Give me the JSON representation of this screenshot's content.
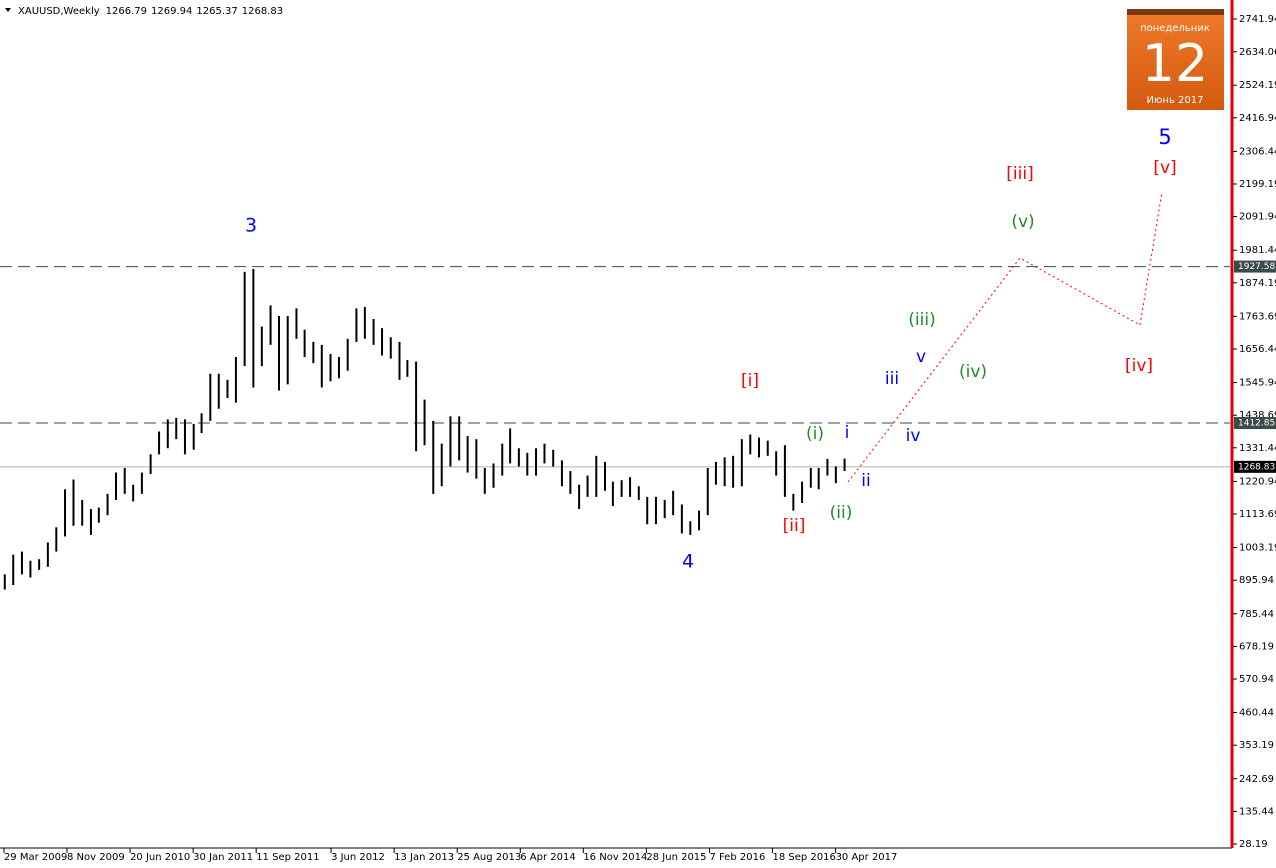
{
  "chart_data": {
    "type": "ohlc",
    "header": {
      "symbol": "XAUUSD,Weekly",
      "ohlc": [
        1266.79,
        1269.94,
        1265.37,
        1268.83
      ]
    },
    "x": [
      "2009-04-01",
      "2009-05-01",
      "2009-06-01",
      "2009-07-01",
      "2009-08-01",
      "2009-09-01",
      "2009-10-01",
      "2009-11-01",
      "2009-12-01",
      "2010-01-01",
      "2010-02-01",
      "2010-03-01",
      "2010-04-01",
      "2010-05-01",
      "2010-06-01",
      "2010-07-01",
      "2010-08-01",
      "2010-09-01",
      "2010-10-01",
      "2010-11-01",
      "2010-12-01",
      "2011-01-01",
      "2011-02-01",
      "2011-03-01",
      "2011-04-01",
      "2011-05-01",
      "2011-06-01",
      "2011-07-01",
      "2011-08-01",
      "2011-09-01",
      "2011-10-01",
      "2011-11-01",
      "2011-12-01",
      "2012-01-01",
      "2012-02-01",
      "2012-03-01",
      "2012-04-01",
      "2012-05-01",
      "2012-06-01",
      "2012-07-01",
      "2012-08-01",
      "2012-09-01",
      "2012-10-01",
      "2012-11-01",
      "2012-12-01",
      "2013-01-01",
      "2013-02-01",
      "2013-03-01",
      "2013-04-01",
      "2013-05-01",
      "2013-06-01",
      "2013-07-01",
      "2013-08-01",
      "2013-09-01",
      "2013-10-01",
      "2013-11-01",
      "2013-12-01",
      "2014-01-01",
      "2014-02-01",
      "2014-03-01",
      "2014-04-01",
      "2014-05-01",
      "2014-06-01",
      "2014-07-01",
      "2014-08-01",
      "2014-09-01",
      "2014-10-01",
      "2014-11-01",
      "2014-12-01",
      "2015-01-01",
      "2015-02-01",
      "2015-03-01",
      "2015-04-01",
      "2015-05-01",
      "2015-06-01",
      "2015-07-01",
      "2015-08-01",
      "2015-09-01",
      "2015-10-01",
      "2015-11-01",
      "2015-12-01",
      "2016-01-01",
      "2016-02-01",
      "2016-03-01",
      "2016-04-01",
      "2016-05-01",
      "2016-06-01",
      "2016-07-01",
      "2016-08-01",
      "2016-09-01",
      "2016-10-01",
      "2016-11-01",
      "2016-12-01",
      "2017-01-01",
      "2017-02-01",
      "2017-03-01",
      "2017-04-01",
      "2017-05-01",
      "2017-06-01"
    ],
    "high": [
      915,
      980,
      990,
      960,
      965,
      1020,
      1070,
      1195,
      1227,
      1160,
      1130,
      1135,
      1180,
      1250,
      1265,
      1210,
      1250,
      1310,
      1385,
      1425,
      1430,
      1425,
      1410,
      1445,
      1575,
      1575,
      1555,
      1630,
      1910,
      1920,
      1730,
      1800,
      1765,
      1765,
      1790,
      1720,
      1680,
      1670,
      1640,
      1630,
      1690,
      1790,
      1795,
      1755,
      1725,
      1695,
      1680,
      1620,
      1615,
      1490,
      1420,
      1345,
      1435,
      1435,
      1370,
      1360,
      1265,
      1280,
      1345,
      1395,
      1330,
      1315,
      1330,
      1345,
      1325,
      1290,
      1255,
      1210,
      1240,
      1305,
      1285,
      1220,
      1225,
      1235,
      1205,
      1170,
      1170,
      1160,
      1190,
      1145,
      1090,
      1125,
      1265,
      1285,
      1300,
      1305,
      1360,
      1375,
      1365,
      1355,
      1320,
      1340,
      1180,
      1220,
      1265,
      1265,
      1295,
      1270,
      1296
    ],
    "low": [
      865,
      880,
      915,
      905,
      930,
      940,
      990,
      1040,
      1075,
      1075,
      1045,
      1085,
      1110,
      1160,
      1180,
      1155,
      1180,
      1245,
      1310,
      1330,
      1360,
      1310,
      1325,
      1380,
      1420,
      1460,
      1495,
      1480,
      1600,
      1530,
      1600,
      1670,
      1520,
      1540,
      1690,
      1630,
      1610,
      1530,
      1550,
      1560,
      1585,
      1680,
      1690,
      1670,
      1635,
      1625,
      1555,
      1565,
      1320,
      1340,
      1180,
      1205,
      1270,
      1290,
      1250,
      1230,
      1180,
      1200,
      1240,
      1280,
      1270,
      1240,
      1240,
      1280,
      1270,
      1205,
      1180,
      1130,
      1170,
      1170,
      1190,
      1140,
      1170,
      1170,
      1160,
      1080,
      1080,
      1100,
      1110,
      1050,
      1045,
      1060,
      1110,
      1210,
      1205,
      1200,
      1205,
      1310,
      1300,
      1305,
      1240,
      1170,
      1125,
      1150,
      1200,
      1195,
      1240,
      1215,
      1255
    ],
    "xlim": [
      "2009-03-15",
      "2021-03-01"
    ],
    "xticks": [
      {
        "value": "2009-03-29",
        "label": "29 Mar 2009"
      },
      {
        "value": "2009-11-08",
        "label": "8 Nov 2009"
      },
      {
        "value": "2010-06-20",
        "label": "20 Jun 2010"
      },
      {
        "value": "2011-01-30",
        "label": "30 Jan 2011"
      },
      {
        "value": "2011-09-11",
        "label": "11 Sep 2011"
      },
      {
        "value": "2012-06-03",
        "label": "3 Jun 2012"
      },
      {
        "value": "2013-01-13",
        "label": "13 Jan 2013"
      },
      {
        "value": "2013-08-25",
        "label": "25 Aug 2013"
      },
      {
        "value": "2014-04-06",
        "label": "6 Apr 2014"
      },
      {
        "value": "2014-11-16",
        "label": "16 Nov 2014"
      },
      {
        "value": "2015-06-28",
        "label": "28 Jun 2015"
      },
      {
        "value": "2016-02-07",
        "label": "7 Feb 2016"
      },
      {
        "value": "2016-09-18",
        "label": "18 Sep 2016"
      },
      {
        "value": "2017-04-30",
        "label": "30 Apr 2017"
      }
    ],
    "ylim": [
      15.03,
      2804.44
    ],
    "yticks": [
      2741.94,
      2634.06,
      2524.19,
      2416.94,
      2306.44,
      2199.19,
      2091.94,
      1981.44,
      1874.19,
      1763.69,
      1656.44,
      1545.94,
      1438.69,
      1331.44,
      1220.94,
      1113.69,
      1003.19,
      895.94,
      785.44,
      678.19,
      570.94,
      460.44,
      353.19,
      242.69,
      135.44,
      28.19
    ],
    "levels": [
      {
        "value": 1927.58,
        "style": "dashed"
      },
      {
        "value": 1412.85,
        "style": "dashed"
      },
      {
        "value": 1268.83,
        "style": "solid"
      }
    ],
    "annotations": [
      {
        "text": "3",
        "color": "#0000ff"
      },
      {
        "text": "4",
        "color": "#0000ff"
      },
      {
        "text": "5",
        "color": "#0000ff"
      },
      {
        "text": "[i]",
        "color": "#ff0000"
      },
      {
        "text": "[ii]",
        "color": "#ff0000"
      },
      {
        "text": "[iii]",
        "color": "#ff0000"
      },
      {
        "text": "[iv]",
        "color": "#ff0000"
      },
      {
        "text": "[v]",
        "color": "#ff0000"
      },
      {
        "text": "(i)",
        "color": "#228b22"
      },
      {
        "text": "(ii)",
        "color": "#228b22"
      },
      {
        "text": "(iii)",
        "color": "#228b22"
      },
      {
        "text": "(iv)",
        "color": "#228b22"
      },
      {
        "text": "(v)",
        "color": "#228b22"
      },
      {
        "text": "i",
        "color": "#0000ff"
      },
      {
        "text": "ii",
        "color": "#0000ff"
      },
      {
        "text": "iii",
        "color": "#0000ff"
      },
      {
        "text": "iv",
        "color": "#0000ff"
      },
      {
        "text": "v",
        "color": "#0000ff"
      }
    ],
    "calendar": {
      "weekday": "понедельник",
      "day": "12",
      "month": "Июнь 2017"
    }
  }
}
